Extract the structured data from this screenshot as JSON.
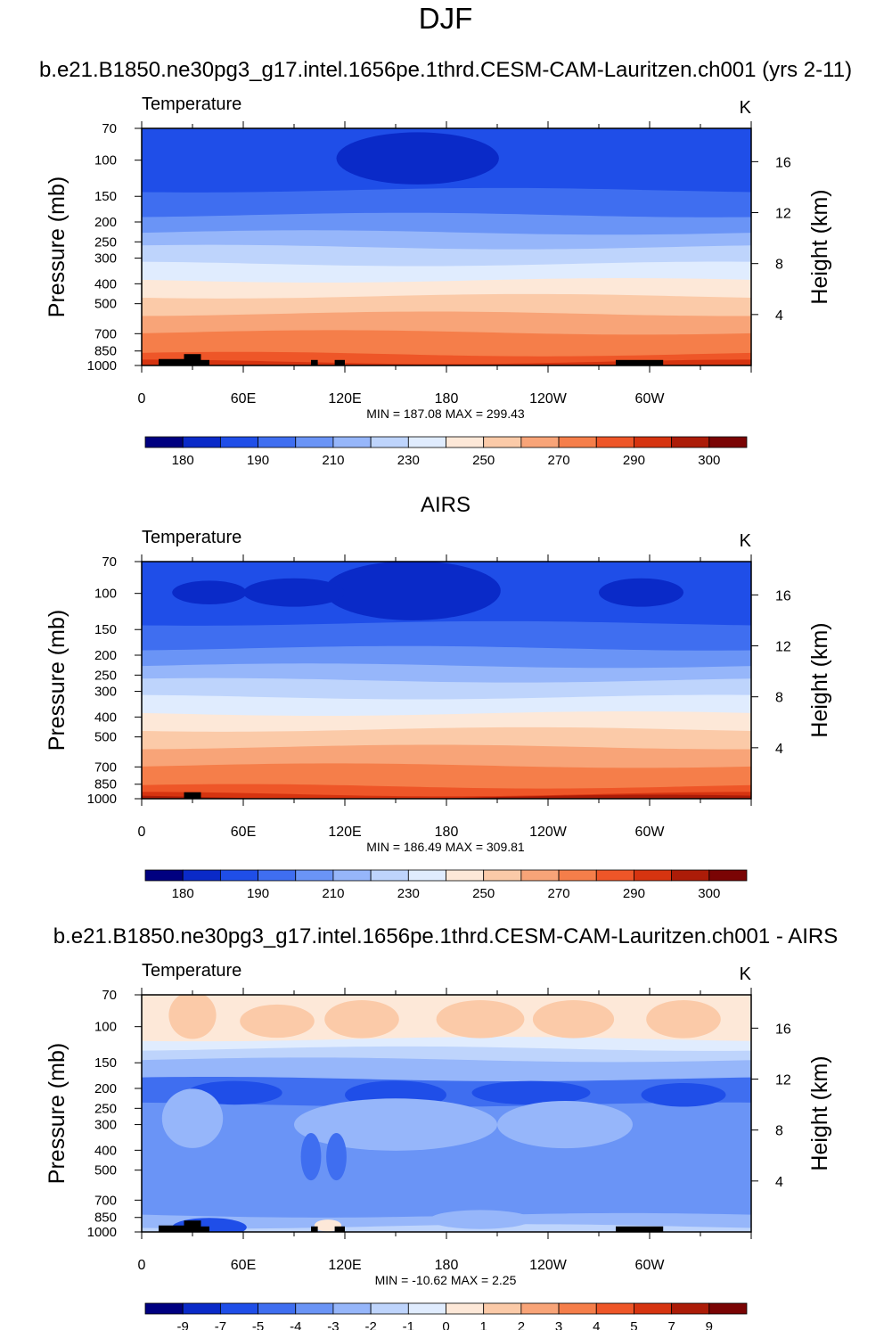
{
  "figure": {
    "title": "DJF"
  },
  "chart_data": [
    {
      "type": "heatmap",
      "title": "b.e21.B1850.ne30pg3_g17.intel.1656pe.1thrd.CESM-CAM-Lauritzen.ch001 (yrs 2-11)",
      "variable": "Temperature",
      "units": "K",
      "xlabel": "",
      "ylabel": "Pressure (mb)",
      "ylabel_right": "Height (km)",
      "x_ticks": [
        "0",
        "60E",
        "120E",
        "180",
        "120W",
        "60W"
      ],
      "y_ticks": [
        "70",
        "100",
        "150",
        "200",
        "250",
        "300",
        "400",
        "500",
        "700",
        "850",
        "1000"
      ],
      "y_ticks_right": [
        "16",
        "12",
        "8",
        "4"
      ],
      "ylim": [
        1000,
        70
      ],
      "xlim": [
        0,
        360
      ],
      "min_label": "MIN = 187.08  MAX = 299.43",
      "min": 187.08,
      "max": 299.43,
      "colorbar_labels": [
        "180",
        "190",
        "210",
        "230",
        "250",
        "270",
        "290",
        "300"
      ],
      "colorbar_colors": [
        "#000080",
        "#0a2ac8",
        "#1f4ee8",
        "#3f6ef0",
        "#6a94f6",
        "#96b6fa",
        "#bed4fc",
        "#e0ecfe",
        "#fde8d8",
        "#fbcaa8",
        "#f8a478",
        "#f57e4a",
        "#ee5628",
        "#d63410",
        "#ac1c08",
        "#7a0404"
      ],
      "bands": [
        {
          "p_top": 70,
          "p_bottom": 140,
          "color_index": 2
        },
        {
          "p_top": 140,
          "p_bottom": 185,
          "color_index": 3
        },
        {
          "p_top": 185,
          "p_bottom": 225,
          "color_index": 4
        },
        {
          "p_top": 225,
          "p_bottom": 265,
          "color_index": 5
        },
        {
          "p_top": 265,
          "p_bottom": 320,
          "color_index": 6
        },
        {
          "p_top": 320,
          "p_bottom": 385,
          "color_index": 7
        },
        {
          "p_top": 385,
          "p_bottom": 460,
          "color_index": 8
        },
        {
          "p_top": 460,
          "p_bottom": 560,
          "color_index": 9
        },
        {
          "p_top": 560,
          "p_bottom": 690,
          "color_index": 10
        },
        {
          "p_top": 690,
          "p_bottom": 880,
          "color_index": 11
        },
        {
          "p_top": 880,
          "p_bottom": 960,
          "color_index": 12
        },
        {
          "p_top": 960,
          "p_bottom": 1000,
          "color_index": 13
        }
      ],
      "blobs": [
        {
          "lon": 163,
          "p": 98,
          "dlon": 48,
          "dp": 0.22,
          "color_index": 1
        }
      ],
      "topography": [
        [
          10,
          25,
          930
        ],
        [
          25,
          35,
          880
        ],
        [
          35,
          40,
          940
        ],
        [
          100,
          104,
          940
        ],
        [
          114,
          120,
          940
        ],
        [
          280,
          308,
          940
        ]
      ]
    },
    {
      "type": "heatmap",
      "title": "AIRS",
      "variable": "Temperature",
      "units": "K",
      "xlabel": "",
      "ylabel": "Pressure (mb)",
      "ylabel_right": "Height (km)",
      "x_ticks": [
        "0",
        "60E",
        "120E",
        "180",
        "120W",
        "60W"
      ],
      "y_ticks": [
        "70",
        "100",
        "150",
        "200",
        "250",
        "300",
        "400",
        "500",
        "700",
        "850",
        "1000"
      ],
      "y_ticks_right": [
        "16",
        "12",
        "8",
        "4"
      ],
      "ylim": [
        1000,
        70
      ],
      "xlim": [
        0,
        360
      ],
      "min_label": "MIN = 186.49  MAX = 309.81",
      "min": 186.49,
      "max": 309.81,
      "colorbar_labels": [
        "180",
        "190",
        "210",
        "230",
        "250",
        "270",
        "290",
        "300"
      ],
      "colorbar_colors": [
        "#000080",
        "#0a2ac8",
        "#1f4ee8",
        "#3f6ef0",
        "#6a94f6",
        "#96b6fa",
        "#bed4fc",
        "#e0ecfe",
        "#fde8d8",
        "#fbcaa8",
        "#f8a478",
        "#f57e4a",
        "#ee5628",
        "#d63410",
        "#ac1c08",
        "#7a0404"
      ],
      "bands": [
        {
          "p_top": 70,
          "p_bottom": 140,
          "color_index": 2
        },
        {
          "p_top": 140,
          "p_bottom": 185,
          "color_index": 3
        },
        {
          "p_top": 185,
          "p_bottom": 225,
          "color_index": 4
        },
        {
          "p_top": 225,
          "p_bottom": 265,
          "color_index": 5
        },
        {
          "p_top": 265,
          "p_bottom": 320,
          "color_index": 6
        },
        {
          "p_top": 320,
          "p_bottom": 385,
          "color_index": 7
        },
        {
          "p_top": 385,
          "p_bottom": 460,
          "color_index": 8
        },
        {
          "p_top": 460,
          "p_bottom": 560,
          "color_index": 9
        },
        {
          "p_top": 560,
          "p_bottom": 690,
          "color_index": 10
        },
        {
          "p_top": 690,
          "p_bottom": 870,
          "color_index": 11
        },
        {
          "p_top": 870,
          "p_bottom": 950,
          "color_index": 12
        },
        {
          "p_top": 950,
          "p_bottom": 980,
          "color_index": 13
        },
        {
          "p_top": 980,
          "p_bottom": 1000,
          "color_index": 14
        }
      ],
      "blobs": [
        {
          "lon": 160,
          "p": 97,
          "dlon": 52,
          "dp": 0.25,
          "color_index": 1
        },
        {
          "lon": 90,
          "p": 99,
          "dlon": 30,
          "dp": 0.12,
          "color_index": 1
        },
        {
          "lon": 40,
          "p": 99,
          "dlon": 22,
          "dp": 0.1,
          "color_index": 1
        },
        {
          "lon": 295,
          "p": 99,
          "dlon": 25,
          "dp": 0.12,
          "color_index": 1
        }
      ],
      "topography": [
        [
          25,
          35,
          930
        ]
      ]
    },
    {
      "type": "heatmap",
      "title": "b.e21.B1850.ne30pg3_g17.intel.1656pe.1thrd.CESM-CAM-Lauritzen.ch001 - AIRS",
      "variable": "Temperature",
      "units": "K",
      "xlabel": "",
      "ylabel": "Pressure (mb)",
      "ylabel_right": "Height (km)",
      "x_ticks": [
        "0",
        "60E",
        "120E",
        "180",
        "120W",
        "60W"
      ],
      "y_ticks": [
        "70",
        "100",
        "150",
        "200",
        "250",
        "300",
        "400",
        "500",
        "700",
        "850",
        "1000"
      ],
      "y_ticks_right": [
        "16",
        "12",
        "8",
        "4"
      ],
      "ylim": [
        1000,
        70
      ],
      "xlim": [
        0,
        360
      ],
      "min_label": "MIN = -10.62  MAX =   2.25",
      "min": -10.62,
      "max": 2.25,
      "colorbar_labels": [
        "-9",
        "-7",
        "-5",
        "-4",
        "-3",
        "-2",
        "-1",
        "0",
        "1",
        "2",
        "3",
        "4",
        "5",
        "7",
        "9"
      ],
      "colorbar_colors": [
        "#000080",
        "#0a2ac8",
        "#1f4ee8",
        "#3f6ef0",
        "#6a94f6",
        "#96b6fa",
        "#bed4fc",
        "#e0ecfe",
        "#fde8d8",
        "#fbcaa8",
        "#f8a478",
        "#f57e4a",
        "#ee5628",
        "#d63410",
        "#ac1c08",
        "#7a0404"
      ],
      "bands": [
        {
          "p_top": 70,
          "p_bottom": 115,
          "color_index": 8
        },
        {
          "p_top": 115,
          "p_bottom": 128,
          "color_index": 7
        },
        {
          "p_top": 128,
          "p_bottom": 145,
          "color_index": 6
        },
        {
          "p_top": 145,
          "p_bottom": 180,
          "color_index": 5
        },
        {
          "p_top": 180,
          "p_bottom": 240,
          "color_index": 3
        },
        {
          "p_top": 240,
          "p_bottom": 830,
          "color_index": 4
        },
        {
          "p_top": 830,
          "p_bottom": 940,
          "color_index": 5
        },
        {
          "p_top": 940,
          "p_bottom": 1000,
          "color_index": 6
        }
      ],
      "blobs": [
        {
          "lon": 30,
          "p": 88,
          "dlon": 14,
          "dp": 0.2,
          "color_index": 9
        },
        {
          "lon": 80,
          "p": 94,
          "dlon": 22,
          "dp": 0.14,
          "color_index": 9
        },
        {
          "lon": 130,
          "p": 92,
          "dlon": 22,
          "dp": 0.16,
          "color_index": 9
        },
        {
          "lon": 200,
          "p": 92,
          "dlon": 26,
          "dp": 0.16,
          "color_index": 9
        },
        {
          "lon": 255,
          "p": 92,
          "dlon": 24,
          "dp": 0.16,
          "color_index": 9
        },
        {
          "lon": 320,
          "p": 92,
          "dlon": 22,
          "dp": 0.16,
          "color_index": 9
        },
        {
          "lon": 55,
          "p": 210,
          "dlon": 28,
          "dp": 0.1,
          "color_index": 2
        },
        {
          "lon": 150,
          "p": 215,
          "dlon": 30,
          "dp": 0.12,
          "color_index": 2
        },
        {
          "lon": 230,
          "p": 210,
          "dlon": 35,
          "dp": 0.1,
          "color_index": 2
        },
        {
          "lon": 320,
          "p": 215,
          "dlon": 25,
          "dp": 0.1,
          "color_index": 2
        },
        {
          "lon": 30,
          "p": 280,
          "dlon": 18,
          "dp": 0.25,
          "color_index": 5
        },
        {
          "lon": 150,
          "p": 300,
          "dlon": 60,
          "dp": 0.22,
          "color_index": 5
        },
        {
          "lon": 250,
          "p": 300,
          "dlon": 40,
          "dp": 0.2,
          "color_index": 5
        },
        {
          "lon": 100,
          "p": 430,
          "dlon": 6,
          "dp": 0.2,
          "color_index": 3
        },
        {
          "lon": 115,
          "p": 430,
          "dlon": 6,
          "dp": 0.2,
          "color_index": 3
        },
        {
          "lon": 40,
          "p": 950,
          "dlon": 22,
          "dp": 0.08,
          "color_index": 2
        },
        {
          "lon": 110,
          "p": 930,
          "dlon": 8,
          "dp": 0.05,
          "color_index": 8
        },
        {
          "lon": 200,
          "p": 870,
          "dlon": 30,
          "dp": 0.08,
          "color_index": 5
        }
      ],
      "topography": [
        [
          10,
          25,
          930
        ],
        [
          25,
          35,
          880
        ],
        [
          35,
          40,
          940
        ],
        [
          100,
          104,
          940
        ],
        [
          114,
          120,
          940
        ],
        [
          280,
          308,
          940
        ]
      ]
    }
  ]
}
